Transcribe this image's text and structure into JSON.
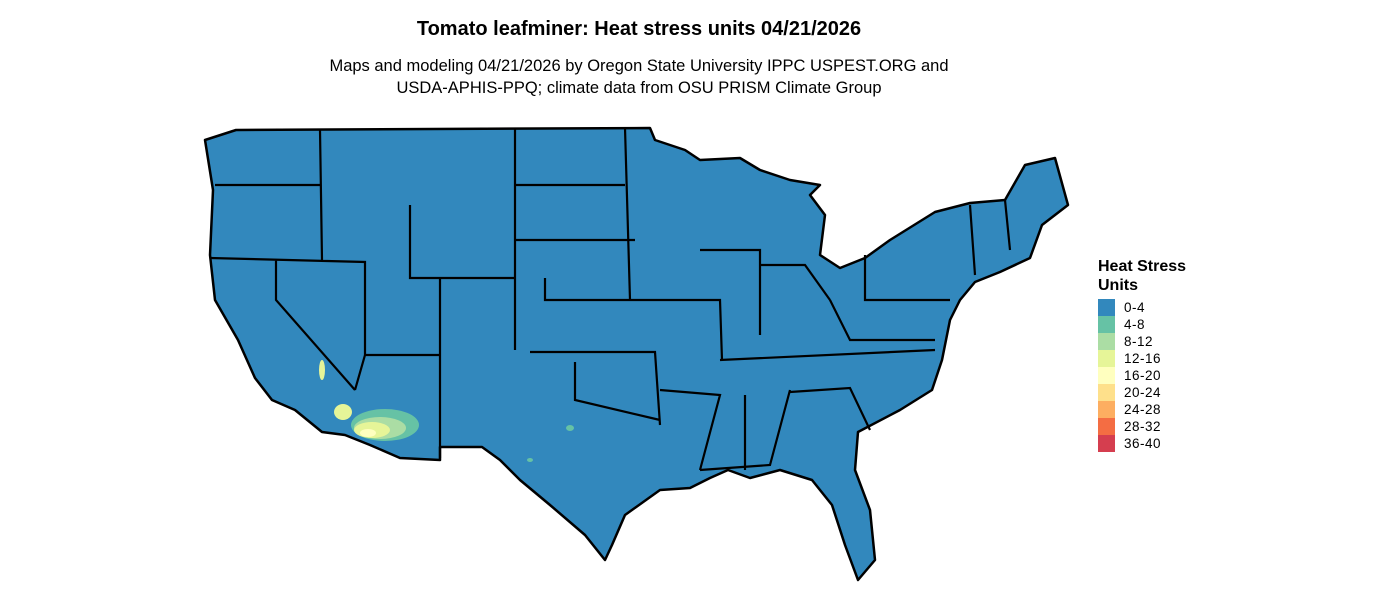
{
  "title": "Tomato leafminer: Heat stress units 04/21/2026",
  "subtitle_line1": "Maps and modeling 04/21/2026 by Oregon State University IPPC USPEST.ORG and",
  "subtitle_line2": "USDA-APHIS-PPQ; climate data from OSU PRISM Climate Group",
  "legend": {
    "title": "Heat Stress Units",
    "items": [
      {
        "label": "0-4",
        "color": "#3288bd"
      },
      {
        "label": "4-8",
        "color": "#66c2a5"
      },
      {
        "label": "8-12",
        "color": "#abdda4"
      },
      {
        "label": "12-16",
        "color": "#e6f598"
      },
      {
        "label": "16-20",
        "color": "#ffffbf"
      },
      {
        "label": "20-24",
        "color": "#fee08b"
      },
      {
        "label": "24-28",
        "color": "#fdae61"
      },
      {
        "label": "28-32",
        "color": "#f46d43"
      },
      {
        "label": "36-40",
        "color": "#d53e4f"
      }
    ]
  },
  "map": {
    "region": "Contiguous United States",
    "dominant_class": "0-4",
    "hotspots": [
      {
        "area": "southern Arizona / southeastern California deserts",
        "classes": [
          "4-8",
          "8-12",
          "12-16",
          "16-20"
        ]
      },
      {
        "area": "Texas scattered spots",
        "classes": [
          "4-8"
        ]
      }
    ]
  }
}
